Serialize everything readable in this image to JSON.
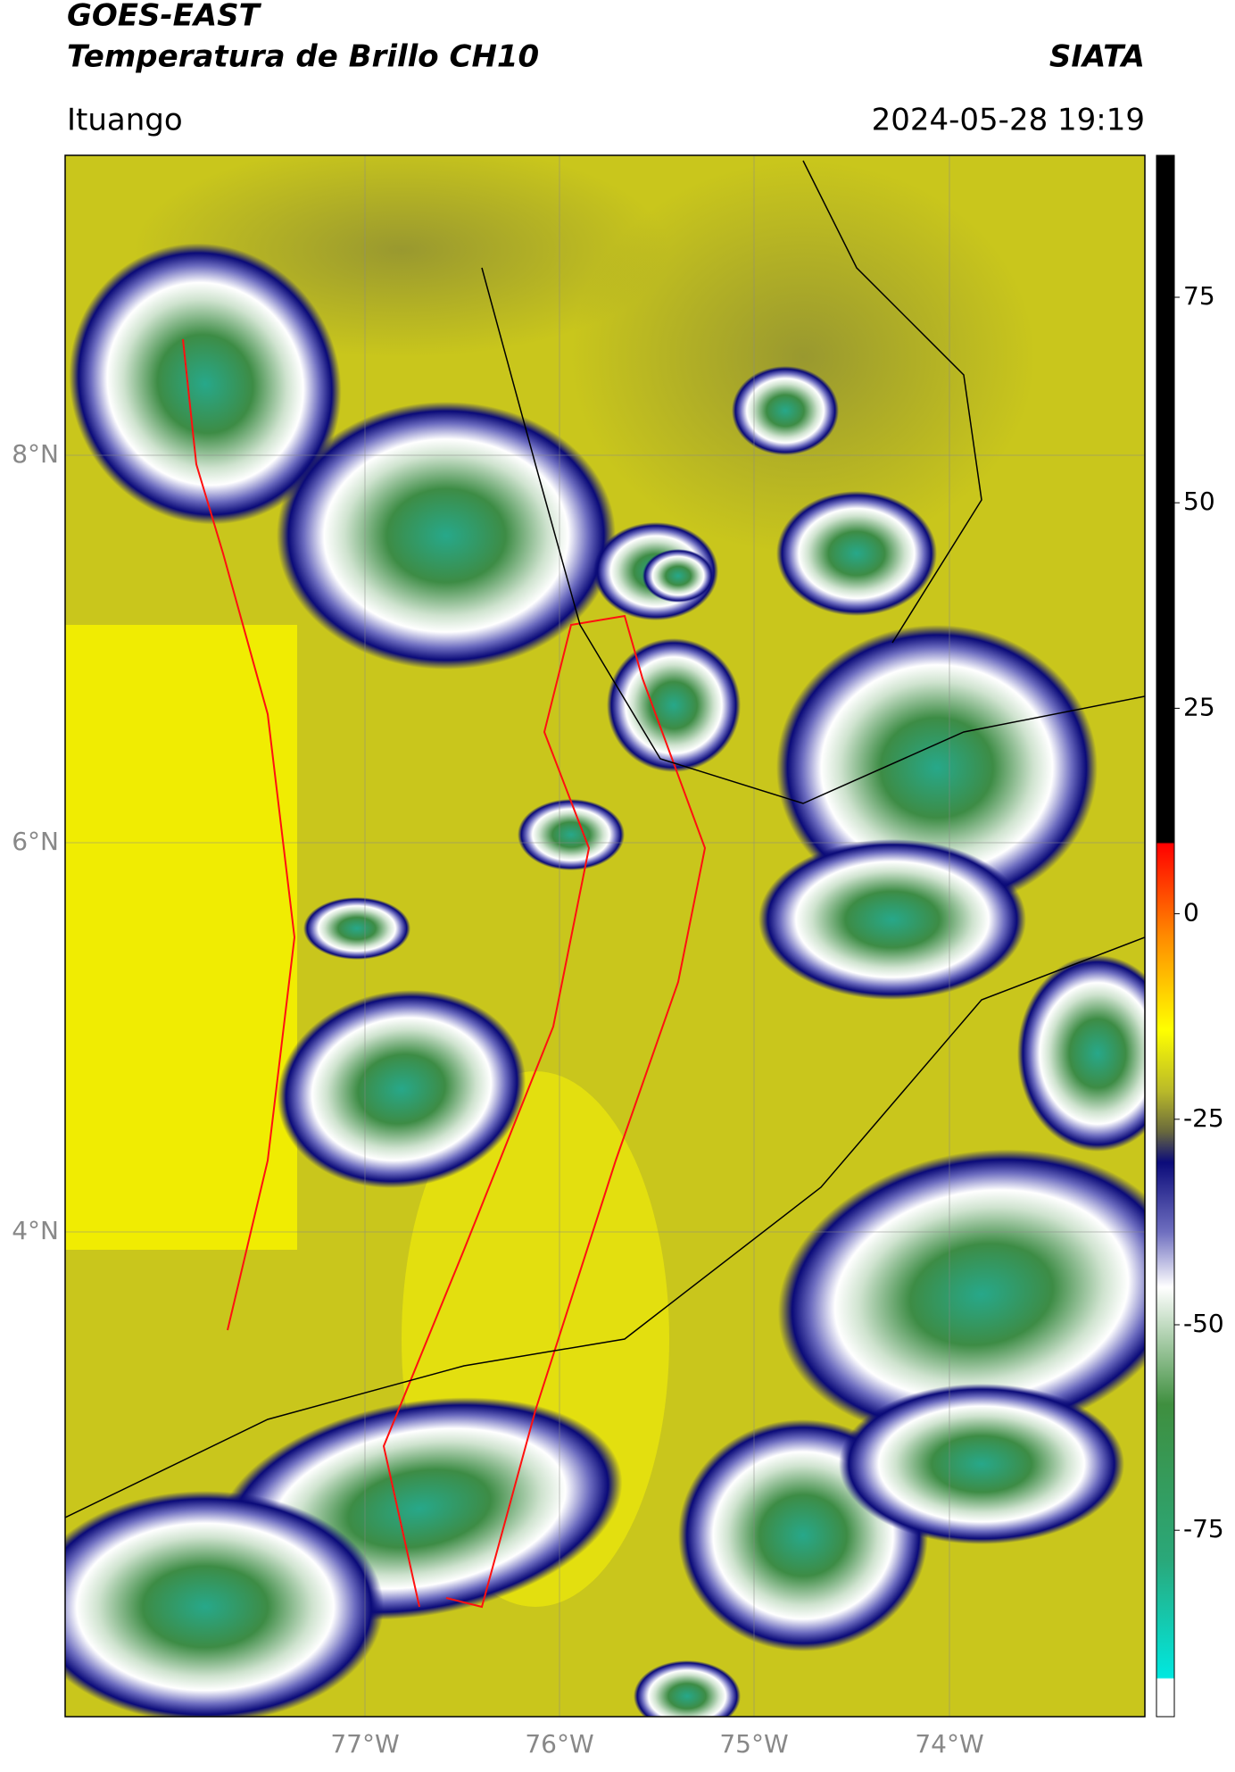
{
  "header": {
    "satellite": "GOES-EAST",
    "product": "Temperatura de Brillo CH10",
    "organization": "SIATA",
    "location": "Ituango",
    "datetime": "2024-05-28 19:19"
  },
  "map": {
    "lat_labels": [
      "8°N",
      "6°N",
      "4°N"
    ],
    "lon_labels": [
      "77°W",
      "76°W",
      "75°W",
      "74°W"
    ]
  },
  "colorbar": {
    "labels": [
      "75",
      "50",
      "25",
      "0",
      "-25",
      "-50",
      "-75"
    ]
  }
}
